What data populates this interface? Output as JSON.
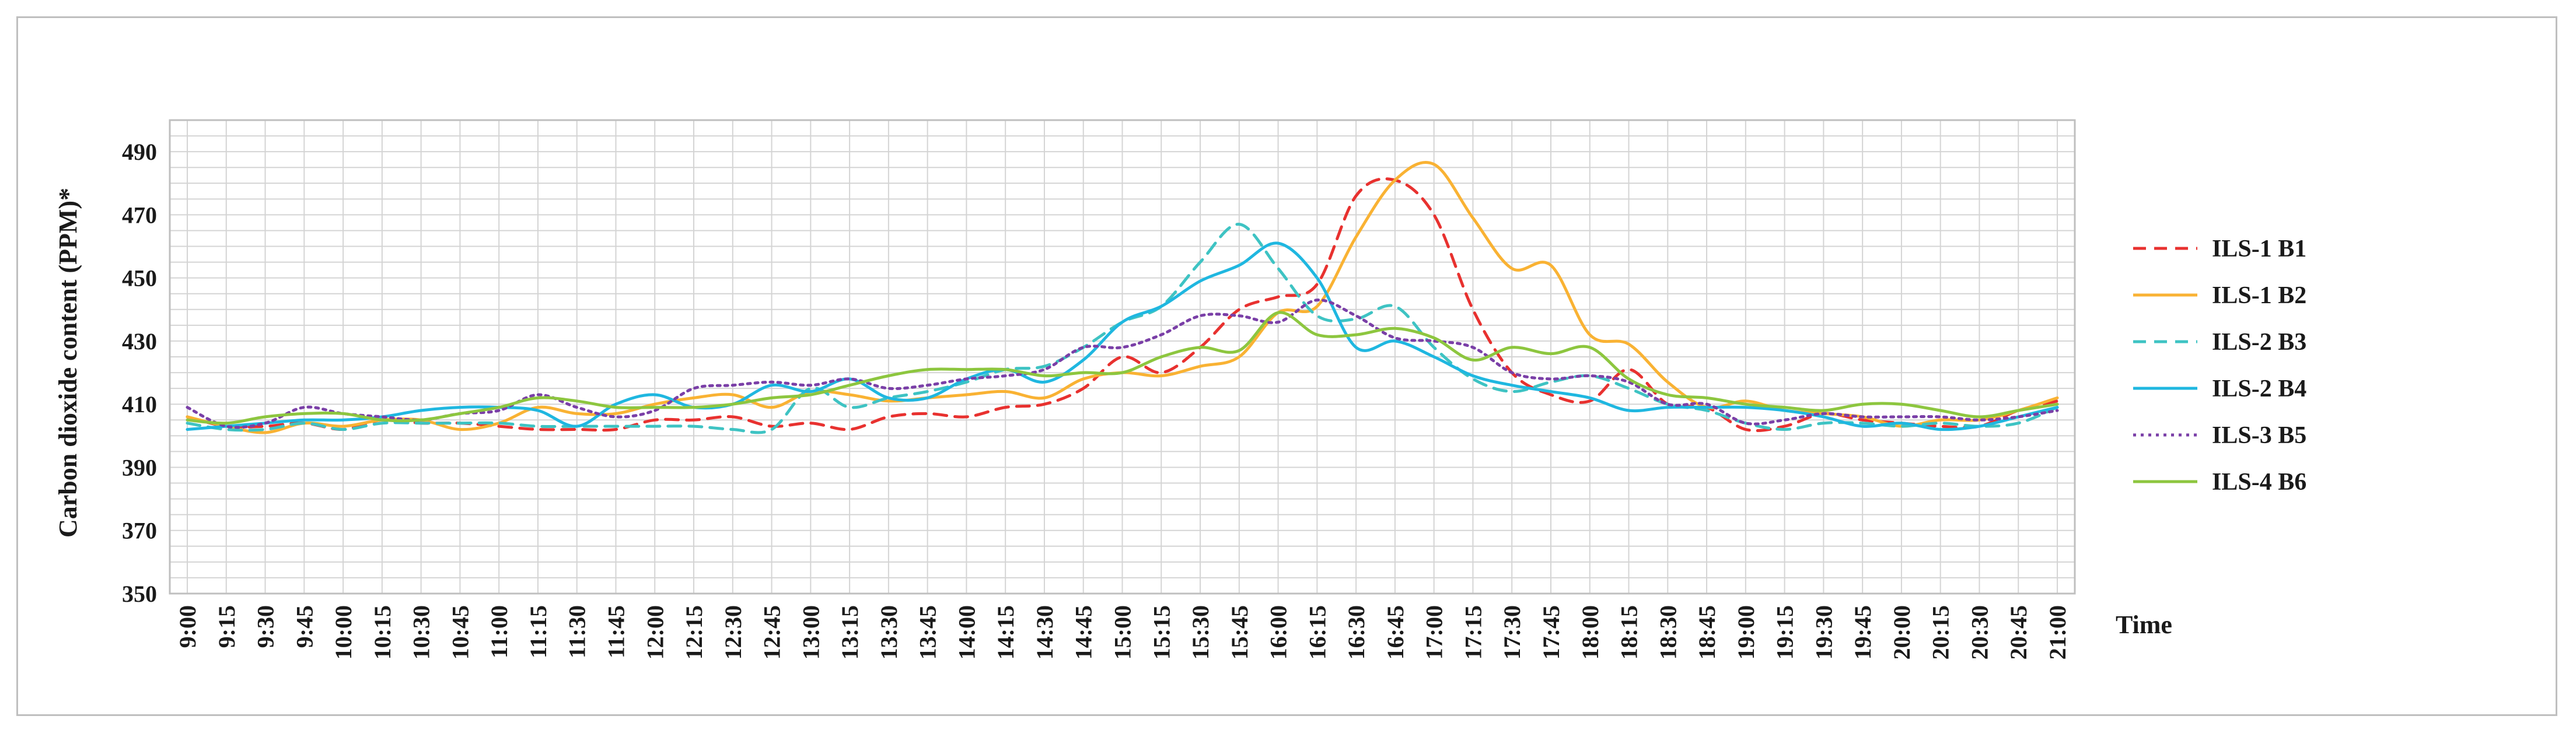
{
  "chart_data": {
    "type": "line",
    "title": "",
    "xlabel": "Time",
    "ylabel": "Carbon dioxide content (PPM)*",
    "ylim": [
      350,
      500
    ],
    "yticks": [
      350,
      370,
      390,
      410,
      430,
      450,
      470,
      490
    ],
    "grid": true,
    "legend_position": "right",
    "x": [
      "9:00",
      "9:15",
      "9:30",
      "9:45",
      "10:00",
      "10:15",
      "10:30",
      "10:45",
      "11:00",
      "11:15",
      "11:30",
      "11:45",
      "12:00",
      "12:15",
      "12:30",
      "12:45",
      "13:00",
      "13:15",
      "13:30",
      "13:45",
      "14:00",
      "14:15",
      "14:30",
      "14:45",
      "15:00",
      "15:15",
      "15:30",
      "15:45",
      "16:00",
      "16:15",
      "16:30",
      "16:45",
      "17:00",
      "17:15",
      "17:30",
      "17:45",
      "18:00",
      "18:15",
      "18:30",
      "18:45",
      "19:00",
      "19:15",
      "19:30",
      "19:45",
      "20:00",
      "20:15",
      "20:30",
      "20:45",
      "21:00"
    ],
    "series": [
      {
        "name": "ILS-1 B1",
        "color": "#e8312f",
        "dash": "dashed",
        "values": [
          406,
          403,
          403,
          404,
          402,
          405,
          404,
          404,
          403,
          402,
          402,
          402,
          405,
          405,
          406,
          403,
          404,
          402,
          406,
          407,
          406,
          409,
          410,
          415,
          425,
          420,
          428,
          440,
          444,
          448,
          476,
          481,
          470,
          440,
          420,
          413,
          411,
          421,
          410,
          409,
          402,
          403,
          407,
          405,
          404,
          403,
          403,
          408,
          411
        ]
      },
      {
        "name": "ILS-1 B2",
        "color": "#f9b233",
        "dash": "solid",
        "values": [
          406,
          403,
          401,
          404,
          403,
          405,
          405,
          402,
          404,
          409,
          407,
          407,
          410,
          412,
          413,
          409,
          414,
          413,
          411,
          412,
          413,
          414,
          412,
          418,
          420,
          419,
          422,
          425,
          439,
          441,
          463,
          481,
          486,
          469,
          453,
          454,
          432,
          429,
          417,
          409,
          411,
          408,
          407,
          406,
          403,
          405,
          405,
          408,
          412
        ]
      },
      {
        "name": "ILS-2 B3",
        "color": "#3ec3c3",
        "dash": "dashed",
        "values": [
          404,
          402,
          402,
          404,
          402,
          404,
          404,
          404,
          404,
          403,
          403,
          403,
          403,
          403,
          402,
          402,
          415,
          409,
          412,
          414,
          417,
          421,
          422,
          428,
          436,
          441,
          455,
          467,
          453,
          438,
          437,
          441,
          428,
          418,
          414,
          417,
          419,
          415,
          410,
          408,
          404,
          402,
          404,
          404,
          403,
          404,
          403,
          404,
          409
        ]
      },
      {
        "name": "ILS-2 B4",
        "color": "#1fb7e0",
        "dash": "solid",
        "values": [
          402,
          403,
          404,
          405,
          405,
          406,
          408,
          409,
          409,
          408,
          403,
          410,
          413,
          409,
          410,
          416,
          414,
          418,
          412,
          412,
          418,
          421,
          417,
          424,
          436,
          441,
          449,
          454,
          461,
          450,
          428,
          430,
          425,
          419,
          416,
          414,
          412,
          408,
          409,
          409,
          409,
          408,
          406,
          403,
          404,
          402,
          403,
          406,
          409
        ]
      },
      {
        "name": "ILS-3 B5",
        "color": "#7a3fa7",
        "dash": "dotted",
        "values": [
          409,
          403,
          404,
          409,
          407,
          406,
          405,
          407,
          408,
          413,
          409,
          406,
          408,
          415,
          416,
          417,
          416,
          418,
          415,
          416,
          418,
          419,
          421,
          428,
          428,
          432,
          438,
          438,
          436,
          443,
          438,
          431,
          430,
          428,
          420,
          418,
          419,
          417,
          410,
          410,
          404,
          405,
          407,
          406,
          406,
          406,
          405,
          406,
          408
        ]
      },
      {
        "name": "ILS-4 B6",
        "color": "#8dc63f",
        "dash": "solid",
        "values": [
          405,
          404,
          406,
          407,
          407,
          405,
          405,
          407,
          409,
          412,
          411,
          409,
          409,
          409,
          410,
          412,
          413,
          416,
          419,
          421,
          421,
          421,
          419,
          420,
          420,
          425,
          428,
          427,
          439,
          432,
          432,
          434,
          431,
          424,
          428,
          426,
          428,
          418,
          413,
          412,
          410,
          409,
          408,
          410,
          410,
          408,
          406,
          408,
          410
        ]
      }
    ]
  }
}
